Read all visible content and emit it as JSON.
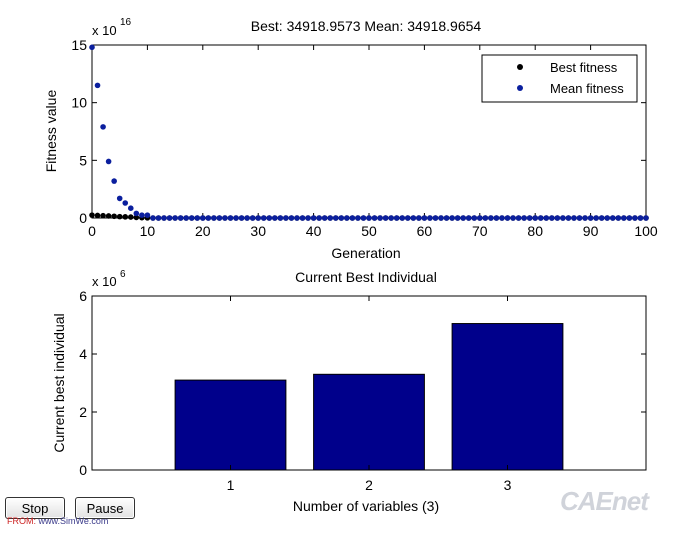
{
  "chart_data": [
    {
      "type": "scatter",
      "title": "Best: 34918.9573 Mean: 34918.9654",
      "xlabel": "Generation",
      "ylabel": "Fitness value",
      "exponent_label": "x 10",
      "exponent_power": "16",
      "xlim": [
        0,
        100
      ],
      "ylim": [
        0,
        15
      ],
      "xticks": [
        "0",
        "10",
        "20",
        "30",
        "40",
        "50",
        "60",
        "70",
        "80",
        "90",
        "100"
      ],
      "yticks": [
        "0",
        "5",
        "10",
        "15"
      ],
      "legend_position": "top-right",
      "series": [
        {
          "name": "Best fitness",
          "color": "#000000",
          "points": [
            [
              0,
              0.25
            ],
            [
              1,
              0.22
            ],
            [
              2,
              0.2
            ],
            [
              3,
              0.18
            ],
            [
              4,
              0.15
            ],
            [
              5,
              0.12
            ],
            [
              6,
              0.1
            ],
            [
              7,
              0.08
            ],
            [
              8,
              0.05
            ],
            [
              9,
              0.03
            ],
            [
              10,
              0.01
            ]
          ]
        },
        {
          "name": "Mean fitness",
          "color": "#0b1f9e",
          "points": [
            [
              0,
              14.8
            ],
            [
              1,
              11.5
            ],
            [
              2,
              7.9
            ],
            [
              3,
              4.9
            ],
            [
              4,
              3.2
            ],
            [
              5,
              1.7
            ],
            [
              6,
              1.3
            ],
            [
              7,
              0.85
            ],
            [
              8,
              0.4
            ],
            [
              9,
              0.25
            ],
            [
              10,
              0.25
            ]
          ]
        }
      ],
      "flat_tail": {
        "from": 11,
        "to": 100,
        "value": 0.0
      }
    },
    {
      "type": "bar",
      "title": "Current Best Individual",
      "xlabel": "Number of variables (3)",
      "ylabel": "Current best individual",
      "exponent_label": "x 10",
      "exponent_power": "6",
      "categories": [
        "1",
        "2",
        "3"
      ],
      "values": [
        3.1,
        3.3,
        5.05
      ],
      "ylim": [
        0,
        6
      ],
      "xlim": [
        0,
        4
      ],
      "yticks": [
        "0",
        "2",
        "4",
        "6"
      ],
      "bar_color": "#00008b"
    }
  ],
  "controls": {
    "stop_label": "Stop",
    "pause_label": "Pause"
  },
  "credit": {
    "prefix": "FROM: ",
    "site": "www.SimWe.com"
  },
  "watermark_text": "CAEnet"
}
